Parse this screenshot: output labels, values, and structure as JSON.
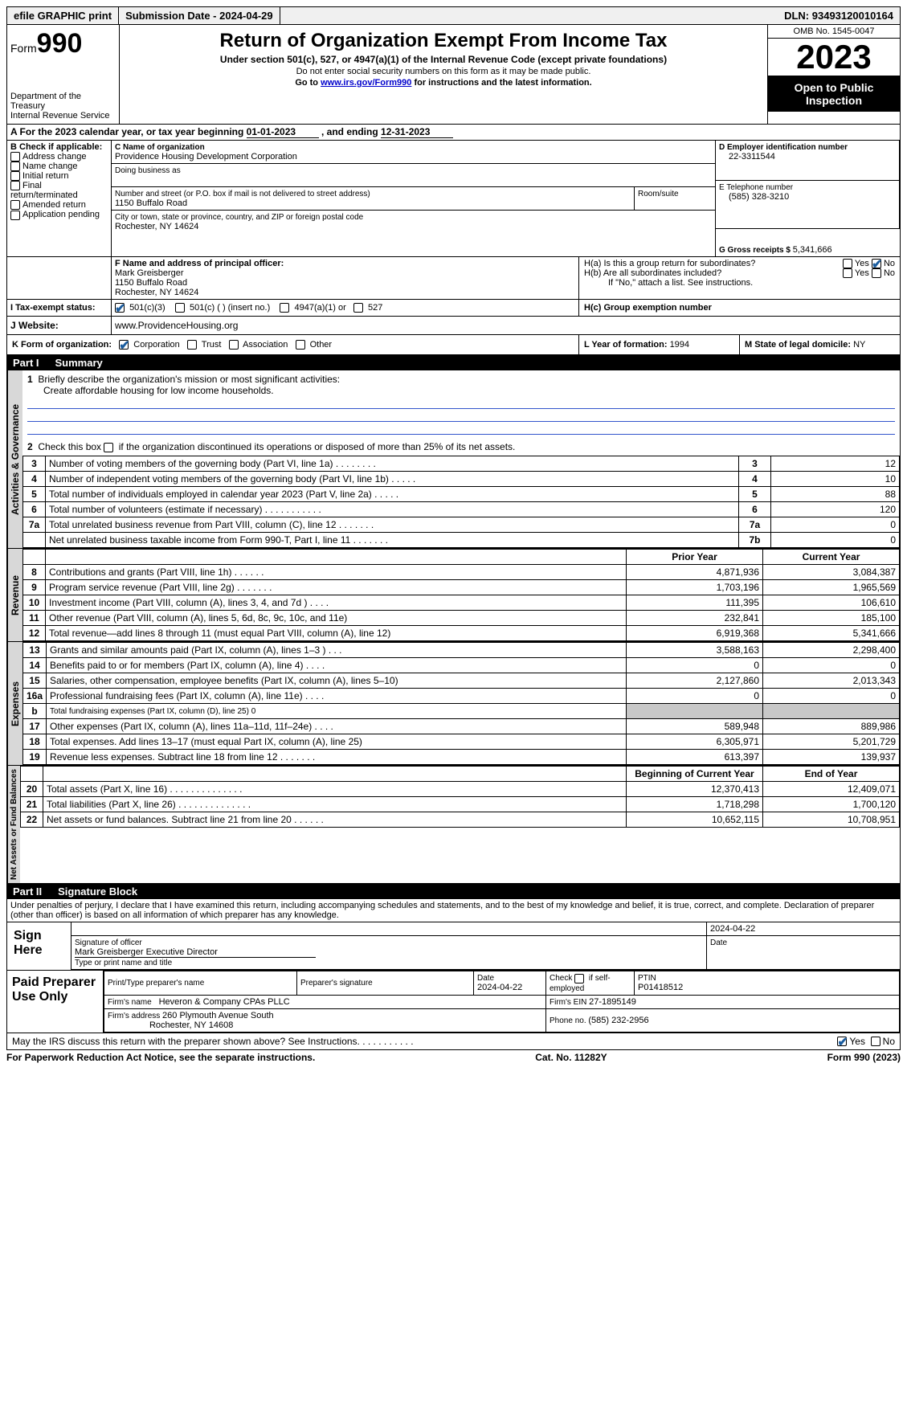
{
  "topbar": {
    "efile": "efile GRAPHIC print",
    "subdate_label": "Submission Date - ",
    "subdate": "2024-04-29",
    "dln_label": "DLN: ",
    "dln": "93493120010164"
  },
  "header": {
    "form_label": "Form",
    "form_number": "990",
    "dept": "Department of the Treasury",
    "irs": "Internal Revenue Service",
    "title": "Return of Organization Exempt From Income Tax",
    "subtitle": "Under section 501(c), 527, or 4947(a)(1) of the Internal Revenue Code (except private foundations)",
    "warn": "Do not enter social security numbers on this form as it may be made public.",
    "goto_pre": "Go to ",
    "goto_link": "www.irs.gov/Form990",
    "goto_post": " for instructions and the latest information.",
    "omb": "OMB No. 1545-0047",
    "year": "2023",
    "open": "Open to Public Inspection"
  },
  "period": {
    "text_a": "A For the 2023 calendar year, or tax year beginning ",
    "begin": "01-01-2023",
    "text_b": " , and ending ",
    "end": "12-31-2023"
  },
  "boxB": {
    "label": "B Check if applicable:",
    "addr": "Address change",
    "name": "Name change",
    "initial": "Initial return",
    "final": "Final return/terminated",
    "amended": "Amended return",
    "app": "Application pending"
  },
  "boxC": {
    "label_name": "C Name of organization",
    "org_name": "Providence Housing Development Corporation",
    "dba_label": "Doing business as",
    "street_label": "Number and street (or P.O. box if mail is not delivered to street address)",
    "room_label": "Room/suite",
    "street": "1150 Buffalo Road",
    "city_label": "City or town, state or province, country, and ZIP or foreign postal code",
    "city": "Rochester, NY  14624"
  },
  "boxD": {
    "label": "D Employer identification number",
    "value": "22-3311544"
  },
  "boxE": {
    "label": "E Telephone number",
    "value": "(585) 328-3210"
  },
  "boxG": {
    "label": "G Gross receipts $ ",
    "value": "5,341,666"
  },
  "boxF": {
    "label": "F  Name and address of principal officer:",
    "name": "Mark Greisberger",
    "street": "1150 Buffalo Road",
    "city": "Rochester, NY  14624"
  },
  "boxH": {
    "a_label": "H(a)  Is this a group return for subordinates?",
    "b_label": "H(b)  Are all subordinates included?",
    "b_note": "If \"No,\" attach a list. See instructions.",
    "c_label": "H(c)  Group exemption number ",
    "yes": "Yes",
    "no": "No"
  },
  "taxexempt": {
    "label": "I   Tax-exempt status:",
    "c3": "501(c)(3)",
    "c": "501(c) (  ) (insert no.)",
    "a1": "4947(a)(1) or",
    "s527": "527"
  },
  "boxJ": {
    "label": "J   Website:",
    "value": "www.ProvidenceHousing.org"
  },
  "boxK": {
    "label": "K Form of organization:",
    "corp": "Corporation",
    "trust": "Trust",
    "assoc": "Association",
    "other": "Other"
  },
  "boxL": {
    "label": "L Year of formation: ",
    "value": "1994"
  },
  "boxM": {
    "label": "M State of legal domicile: ",
    "value": "NY"
  },
  "partI": {
    "label": "Part I",
    "title": "Summary",
    "q1": "Briefly describe the organization's mission or most significant activities:",
    "mission": "Create affordable housing for low income households.",
    "q2": "Check this box  if the organization discontinued its operations or disposed of more than 25% of its net assets.",
    "sideA": "Activities & Governance",
    "sideR": "Revenue",
    "sideE": "Expenses",
    "sideN": "Net Assets or Fund Balances",
    "col_prior": "Prior Year",
    "col_current": "Current Year",
    "col_begin": "Beginning of Current Year",
    "col_end": "End of Year",
    "rows_gov": [
      {
        "n": "3",
        "d": "Number of voting members of the governing body (Part VI, line 1a)   .    .    .    .    .    .    .    .",
        "lab": "3",
        "v": "12"
      },
      {
        "n": "4",
        "d": "Number of independent voting members of the governing body (Part VI, line 1b)    .    .    .    .    .",
        "lab": "4",
        "v": "10"
      },
      {
        "n": "5",
        "d": "Total number of individuals employed in calendar year 2023 (Part V, line 2a)    .    .    .    .    .",
        "lab": "5",
        "v": "88"
      },
      {
        "n": "6",
        "d": "Total number of volunteers (estimate if necessary)    .    .    .    .    .    .    .    .    .    .    .",
        "lab": "6",
        "v": "120"
      },
      {
        "n": "7a",
        "d": "Total unrelated business revenue from Part VIII, column (C), line 12    .    .    .    .    .    .    .",
        "lab": "7a",
        "v": "0"
      },
      {
        "n": "",
        "d": "Net unrelated business taxable income from Form 990-T, Part I, line 11    .    .    .    .    .    .    .",
        "lab": "7b",
        "v": "0"
      }
    ],
    "rows_rev": [
      {
        "n": "8",
        "d": "Contributions and grants (Part VIII, line 1h)    .    .    .    .    .    .",
        "p": "4,871,936",
        "c": "3,084,387"
      },
      {
        "n": "9",
        "d": "Program service revenue (Part VIII, line 2g)    .    .    .    .    .    .    .",
        "p": "1,703,196",
        "c": "1,965,569"
      },
      {
        "n": "10",
        "d": "Investment income (Part VIII, column (A), lines 3, 4, and 7d )    .    .    .    .",
        "p": "111,395",
        "c": "106,610"
      },
      {
        "n": "11",
        "d": "Other revenue (Part VIII, column (A), lines 5, 6d, 8c, 9c, 10c, and 11e)",
        "p": "232,841",
        "c": "185,100"
      },
      {
        "n": "12",
        "d": "Total revenue—add lines 8 through 11 (must equal Part VIII, column (A), line 12)",
        "p": "6,919,368",
        "c": "5,341,666"
      }
    ],
    "rows_exp": [
      {
        "n": "13",
        "d": "Grants and similar amounts paid (Part IX, column (A), lines 1–3 )    .    .    .",
        "p": "3,588,163",
        "c": "2,298,400"
      },
      {
        "n": "14",
        "d": "Benefits paid to or for members (Part IX, column (A), line 4)    .    .    .    .",
        "p": "0",
        "c": "0"
      },
      {
        "n": "15",
        "d": "Salaries, other compensation, employee benefits (Part IX, column (A), lines 5–10)",
        "p": "2,127,860",
        "c": "2,013,343"
      },
      {
        "n": "16a",
        "d": "Professional fundraising fees (Part IX, column (A), line 11e)    .    .    .    .",
        "p": "0",
        "c": "0"
      },
      {
        "n": "b",
        "d": "Total fundraising expenses (Part IX, column (D), line 25) 0",
        "p": "",
        "c": "",
        "shade": true,
        "small": true
      },
      {
        "n": "17",
        "d": "Other expenses (Part IX, column (A), lines 11a–11d, 11f–24e)    .    .    .    .",
        "p": "589,948",
        "c": "889,986"
      },
      {
        "n": "18",
        "d": "Total expenses. Add lines 13–17 (must equal Part IX, column (A), line 25)",
        "p": "6,305,971",
        "c": "5,201,729"
      },
      {
        "n": "19",
        "d": "Revenue less expenses. Subtract line 18 from line 12    .    .    .    .    .    .    .",
        "p": "613,397",
        "c": "139,937"
      }
    ],
    "rows_net": [
      {
        "n": "20",
        "d": "Total assets (Part X, line 16)    .    .    .    .    .    .    .    .    .    .    .    .    .    .",
        "p": "12,370,413",
        "c": "12,409,071"
      },
      {
        "n": "21",
        "d": "Total liabilities (Part X, line 26)    .    .    .    .    .    .    .    .    .    .    .    .    .    .",
        "p": "1,718,298",
        "c": "1,700,120"
      },
      {
        "n": "22",
        "d": "Net assets or fund balances. Subtract line 21 from line 20    .    .    .    .    .    .",
        "p": "10,652,115",
        "c": "10,708,951"
      }
    ]
  },
  "partII": {
    "label": "Part II",
    "title": "Signature Block",
    "decl": "Under penalties of perjury, I declare that I have examined this return, including accompanying schedules and statements, and to the best of my knowledge and belief, it is true, correct, and complete. Declaration of preparer (other than officer) is based on all information of which preparer has any knowledge."
  },
  "sign": {
    "here": "Sign Here",
    "sig_officer_label": "Signature of officer",
    "officer_name": "Mark Greisberger  Executive Director",
    "type_label": "Type or print name and title",
    "date_label": "Date",
    "date_val": "2024-04-22"
  },
  "preparer": {
    "label": "Paid Preparer Use Only",
    "print_label": "Print/Type preparer's name",
    "sig_label": "Preparer's signature",
    "date_label": "Date",
    "date_val": "2024-04-22",
    "check_label": "Check  if self-employed",
    "ptin_label": "PTIN",
    "ptin": "P01418512",
    "firm_name_label": "Firm's name   ",
    "firm_name": "Heveron & Company CPAs PLLC",
    "firm_ein_label": "Firm's EIN  ",
    "firm_ein": "27-1895149",
    "firm_addr_label": "Firm's address ",
    "firm_addr1": "260 Plymouth Avenue South",
    "firm_addr2": "Rochester, NY  14608",
    "phone_label": "Phone no. ",
    "phone": "(585) 232-2956"
  },
  "footer": {
    "discuss": "May the IRS discuss this return with the preparer shown above? See Instructions.    .    .    .    .    .    .    .    .    .    .",
    "yes": "Yes",
    "no": "No",
    "paperwork": "For Paperwork Reduction Act Notice, see the separate instructions.",
    "cat": "Cat. No. 11282Y",
    "formrev": "Form 990 (2023)"
  },
  "colors": {
    "link": "#0000cc",
    "check": "#1a5c9e",
    "shade": "#c8c8c8",
    "side": "#d8d8d8",
    "line": "#3355cc"
  }
}
